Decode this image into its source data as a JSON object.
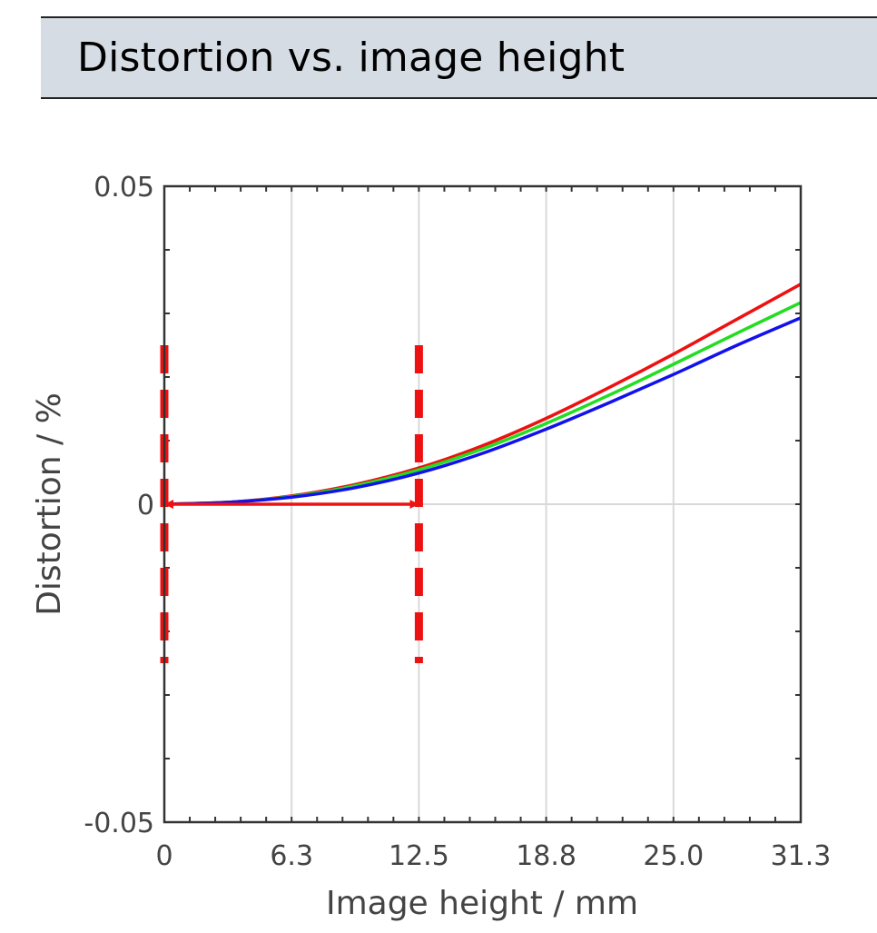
{
  "title": "Distortion vs. image height",
  "chart_data": {
    "type": "line",
    "xlabel": "Image height / mm",
    "ylabel": "Distortion / %",
    "xlim": [
      0,
      31.3
    ],
    "ylim": [
      -0.05,
      0.05
    ],
    "x_ticks": [
      "0",
      "6.3",
      "12.5",
      "18.8",
      "25.0",
      "31.3"
    ],
    "x_tick_values": [
      0,
      6.26,
      12.52,
      18.78,
      25.04,
      31.3
    ],
    "y_ticks": [
      "0.05",
      "0",
      "-0.05"
    ],
    "y_tick_values": [
      0.05,
      0,
      -0.05
    ],
    "grid": true,
    "series": [
      {
        "color": "#ee1111",
        "x": [
          0,
          3.13,
          6.26,
          9.39,
          12.52,
          15.65,
          18.78,
          21.91,
          25.04,
          28.17,
          31.3
        ],
        "values": [
          0,
          0.0003,
          0.0013,
          0.0031,
          0.0057,
          0.0092,
          0.0135,
          0.0184,
          0.0236,
          0.0291,
          0.0346
        ]
      },
      {
        "color": "#22dd22",
        "x": [
          0,
          3.13,
          6.26,
          9.39,
          12.52,
          15.65,
          18.78,
          21.91,
          25.04,
          28.17,
          31.3
        ],
        "values": [
          0,
          0.0003,
          0.0012,
          0.0029,
          0.0054,
          0.0087,
          0.0127,
          0.0172,
          0.022,
          0.0269,
          0.0317
        ]
      },
      {
        "color": "#1111ee",
        "x": [
          0,
          3.13,
          6.26,
          9.39,
          12.52,
          15.65,
          18.78,
          21.91,
          25.04,
          28.17,
          31.3
        ],
        "values": [
          0,
          0.0003,
          0.0011,
          0.0026,
          0.0049,
          0.008,
          0.0118,
          0.016,
          0.0204,
          0.025,
          0.0293
        ]
      }
    ],
    "annotations": {
      "color": "#ee1111",
      "dashed_vlines_x": [
        0,
        12.52
      ],
      "dashed_vlines_y_range": [
        -0.025,
        0.025
      ],
      "arrow": {
        "x_from": 0,
        "x_to": 12.52,
        "y": 0
      }
    }
  }
}
